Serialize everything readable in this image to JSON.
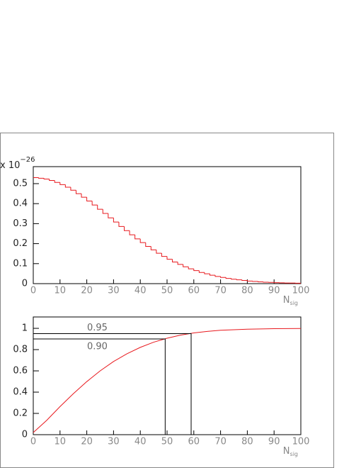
{
  "chart_data": [
    {
      "type": "histogram",
      "y_scale_label": {
        "base": "x 10",
        "exponent": "−26"
      },
      "x_label": {
        "main": "N",
        "sub": "sig"
      },
      "bins": [
        0,
        2,
        4,
        6,
        8,
        10,
        12,
        14,
        16,
        18,
        20,
        22,
        24,
        26,
        28,
        30,
        32,
        34,
        36,
        38,
        40,
        42,
        44,
        46,
        48,
        50,
        52,
        54,
        56,
        58,
        60,
        62,
        64,
        66,
        68,
        70,
        72,
        74,
        76,
        78,
        80,
        82,
        84,
        86,
        88,
        90,
        92,
        94,
        96,
        98,
        100
      ],
      "values": [
        0.53,
        0.527,
        0.523,
        0.516,
        0.506,
        0.495,
        0.482,
        0.467,
        0.45,
        0.432,
        0.413,
        0.393,
        0.372,
        0.351,
        0.329,
        0.308,
        0.286,
        0.265,
        0.244,
        0.224,
        0.205,
        0.186,
        0.169,
        0.152,
        0.136,
        0.122,
        0.108,
        0.096,
        0.084,
        0.074,
        0.065,
        0.056,
        0.049,
        0.042,
        0.036,
        0.031,
        0.026,
        0.022,
        0.019,
        0.016,
        0.013,
        0.011,
        0.009,
        0.007,
        0.006,
        0.005,
        0.004,
        0.003,
        0.003,
        0.002
      ],
      "color": "#e8191e",
      "xlim": [
        0,
        100
      ],
      "xticks": [
        0,
        10,
        20,
        30,
        40,
        50,
        60,
        70,
        80,
        90,
        100
      ],
      "ylim": [
        0,
        0.585
      ],
      "yticks": [
        0,
        0.1,
        0.2,
        0.3,
        0.4,
        0.5
      ]
    },
    {
      "type": "line",
      "x_label": {
        "main": "N",
        "sub": "sig"
      },
      "x": [
        0,
        5,
        10,
        15,
        20,
        25,
        30,
        35,
        40,
        45,
        50,
        55,
        60,
        65,
        70,
        80,
        90,
        100
      ],
      "values": [
        0.02,
        0.134,
        0.264,
        0.386,
        0.499,
        0.6,
        0.688,
        0.761,
        0.821,
        0.87,
        0.907,
        0.936,
        0.957,
        0.971,
        0.982,
        0.992,
        0.997,
        0.999
      ],
      "color": "#e8191e",
      "annotations": [
        {
          "label": "0.95",
          "y": 0.95,
          "x": 59
        },
        {
          "label": "0.90",
          "y": 0.9,
          "x": 49.3
        }
      ],
      "xlim": [
        0,
        100
      ],
      "xticks": [
        0,
        10,
        20,
        30,
        40,
        50,
        60,
        70,
        80,
        90,
        100
      ],
      "ylim": [
        0,
        1.107
      ],
      "yticks": [
        0,
        0.2,
        0.4,
        0.6,
        0.8,
        1
      ]
    }
  ]
}
